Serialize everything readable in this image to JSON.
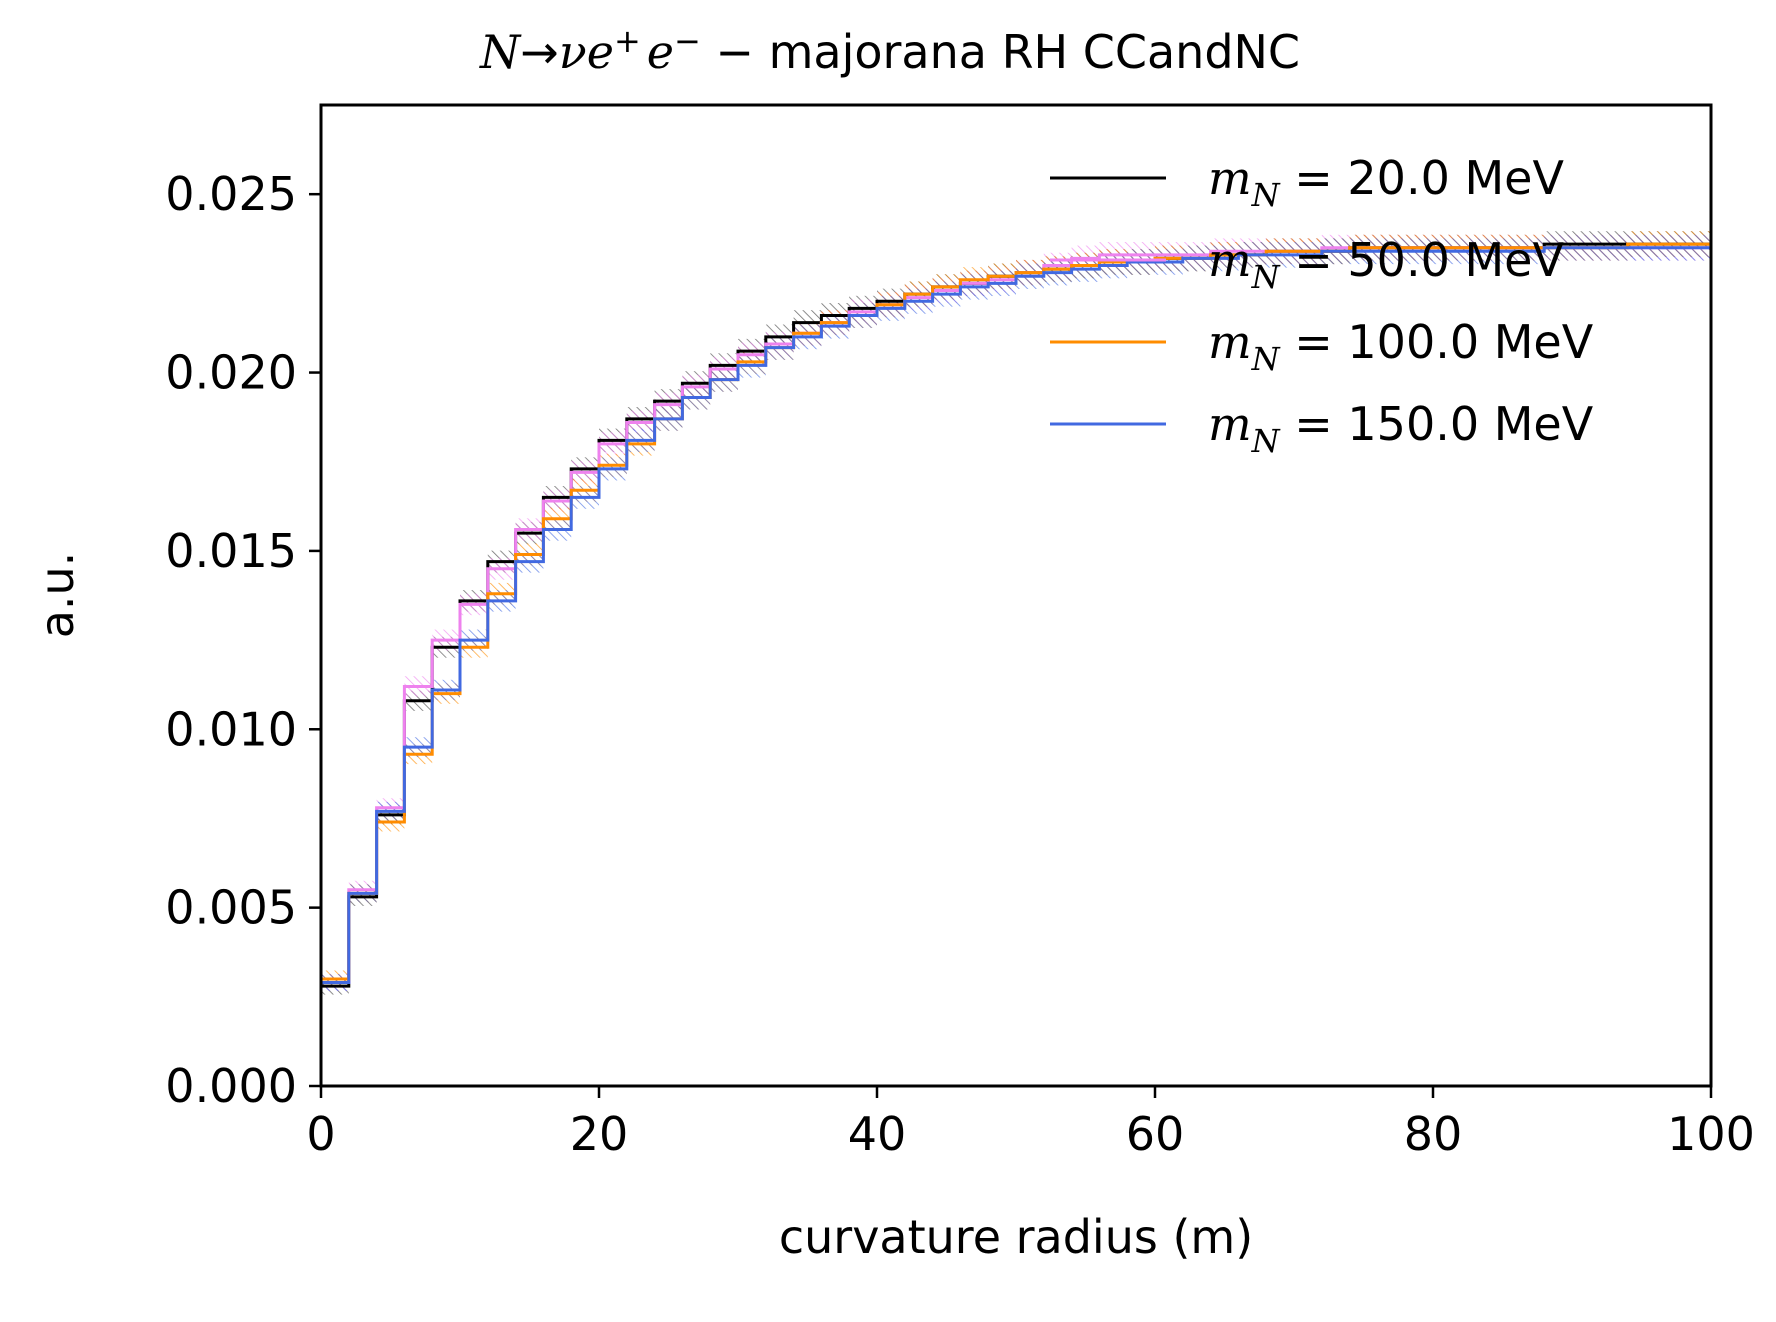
{
  "chart_data": {
    "type": "line",
    "title": {
      "math_N": "N",
      "math_arrow": "→",
      "math_nu": "ν",
      "math_e1": "e",
      "math_plus": "+",
      "math_e2": "e",
      "math_minus": "−",
      "rest": " − majorana RH CCandNC"
    },
    "xlabel": "curvature radius (m)",
    "ylabel": "a.u.",
    "xlim": [
      0,
      100
    ],
    "ylim": [
      0,
      0.0275
    ],
    "xticks": [
      "0",
      "20",
      "40",
      "60",
      "80",
      "100"
    ],
    "xtick_values": [
      0,
      20,
      40,
      60,
      80,
      100
    ],
    "yticks": [
      "0.000",
      "0.005",
      "0.010",
      "0.015",
      "0.020",
      "0.025"
    ],
    "ytick_values": [
      0,
      0.005,
      0.01,
      0.015,
      0.02,
      0.025
    ],
    "grid": false,
    "legend_position": "top-right",
    "bin_edges": [
      0,
      2,
      4,
      6,
      8,
      10,
      12,
      14,
      16,
      18,
      20,
      22,
      24,
      26,
      28,
      30,
      32,
      34,
      36,
      38,
      40,
      42,
      44,
      46,
      48,
      50,
      52,
      54,
      56,
      58,
      60,
      62,
      64,
      66,
      68,
      70,
      72,
      74,
      76,
      78,
      80,
      82,
      84,
      86,
      88,
      90,
      92,
      94,
      96,
      98,
      100
    ],
    "series": [
      {
        "legend_var": "m",
        "legend_sub": "N",
        "legend_value": " = 20.0 MeV",
        "color": "#000000",
        "values": [
          0.0028,
          0.0053,
          0.0076,
          0.0108,
          0.0123,
          0.0136,
          0.0147,
          0.0155,
          0.0165,
          0.0173,
          0.0181,
          0.0187,
          0.0192,
          0.0197,
          0.0202,
          0.0206,
          0.021,
          0.0214,
          0.0216,
          0.0218,
          0.022,
          0.0222,
          0.0224,
          0.0225,
          0.0227,
          0.0228,
          0.0229,
          0.023,
          0.0231,
          0.0231,
          0.0232,
          0.0232,
          0.0233,
          0.0233,
          0.0234,
          0.0234,
          0.0234,
          0.0235,
          0.0235,
          0.0235,
          0.0235,
          0.0235,
          0.0235,
          0.0235,
          0.0236,
          0.0236,
          0.0236,
          0.0236,
          0.0236,
          0.0236
        ]
      },
      {
        "legend_var": "m",
        "legend_sub": "N",
        "legend_value": " = 50.0 MeV",
        "color": "#ee82ee",
        "values": [
          0.0029,
          0.0055,
          0.0078,
          0.0112,
          0.0125,
          0.0135,
          0.0145,
          0.0156,
          0.0164,
          0.0172,
          0.018,
          0.0186,
          0.0191,
          0.0196,
          0.0201,
          0.0205,
          0.0208,
          0.0211,
          0.0214,
          0.0217,
          0.0219,
          0.0221,
          0.0223,
          0.0225,
          0.0226,
          0.0228,
          0.023,
          0.0232,
          0.0233,
          0.0233,
          0.0233,
          0.0233,
          0.0234,
          0.0234,
          0.0234,
          0.0234,
          0.0235,
          0.0235,
          0.0235,
          0.0235,
          0.0235,
          0.0235,
          0.0235,
          0.0235,
          0.0235,
          0.0235,
          0.0235,
          0.0235,
          0.0235,
          0.0235
        ]
      },
      {
        "legend_var": "m",
        "legend_sub": "N",
        "legend_value": " = 100.0 MeV",
        "color": "#ff8c00",
        "values": [
          0.003,
          0.0054,
          0.0074,
          0.0093,
          0.011,
          0.0123,
          0.0138,
          0.0149,
          0.0159,
          0.0167,
          0.0174,
          0.018,
          0.0187,
          0.0193,
          0.0198,
          0.0203,
          0.0207,
          0.0211,
          0.0214,
          0.0216,
          0.0219,
          0.0222,
          0.0224,
          0.0226,
          0.0227,
          0.0228,
          0.0229,
          0.023,
          0.0231,
          0.0231,
          0.0232,
          0.0232,
          0.0233,
          0.0233,
          0.0234,
          0.0234,
          0.0234,
          0.0235,
          0.0235,
          0.0235,
          0.0235,
          0.0235,
          0.0235,
          0.0235,
          0.0235,
          0.0235,
          0.0235,
          0.0236,
          0.0236,
          0.0236
        ]
      },
      {
        "legend_var": "m",
        "legend_sub": "N",
        "legend_value": " = 150.0 MeV",
        "color": "#4169e1",
        "values": [
          0.0029,
          0.0054,
          0.0077,
          0.0095,
          0.0111,
          0.0125,
          0.0136,
          0.0147,
          0.0156,
          0.0165,
          0.0173,
          0.0181,
          0.0187,
          0.0193,
          0.0198,
          0.0202,
          0.0207,
          0.021,
          0.0213,
          0.0216,
          0.0218,
          0.022,
          0.0222,
          0.0224,
          0.0225,
          0.0227,
          0.0228,
          0.0229,
          0.023,
          0.0231,
          0.0231,
          0.0232,
          0.0232,
          0.0233,
          0.0233,
          0.0233,
          0.0234,
          0.0234,
          0.0234,
          0.0234,
          0.0234,
          0.0234,
          0.0234,
          0.0234,
          0.0235,
          0.0235,
          0.0235,
          0.0235,
          0.0235,
          0.0235
        ]
      }
    ]
  }
}
